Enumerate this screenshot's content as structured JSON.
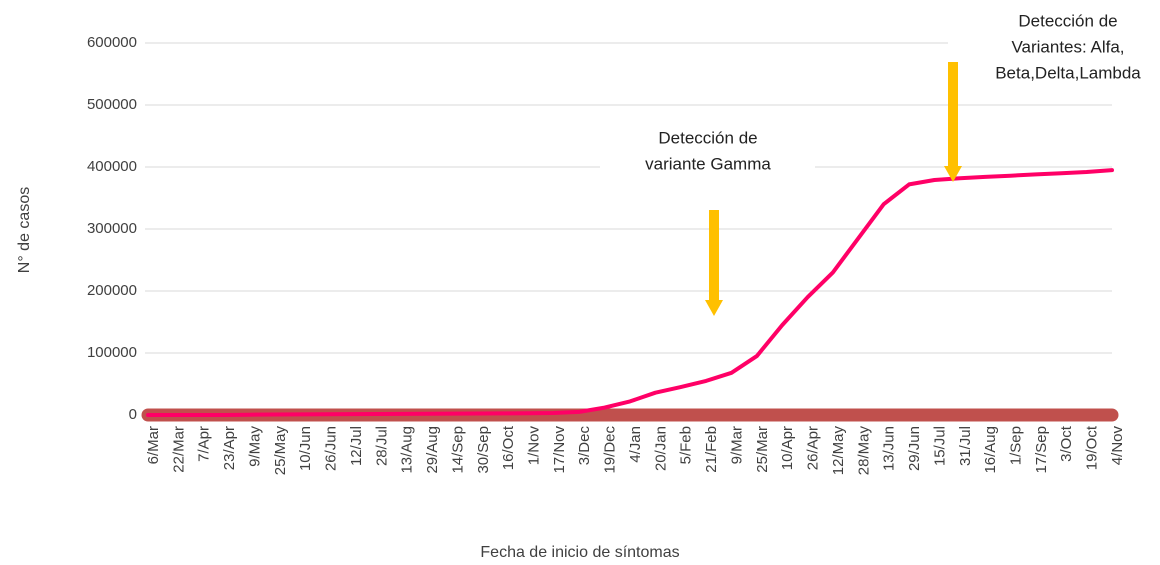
{
  "chart_data": {
    "type": "line",
    "ylabel": "N° de casos",
    "xlabel": "Fecha de inicio de síntomas",
    "categories": [
      "6/Mar",
      "22/Mar",
      "7/Apr",
      "23/Apr",
      "9/May",
      "25/May",
      "10/Jun",
      "26/Jun",
      "12/Jul",
      "28/Jul",
      "13/Aug",
      "29/Aug",
      "14/Sep",
      "30/Sep",
      "16/Oct",
      "1/Nov",
      "17/Nov",
      "3/Dec",
      "19/Dec",
      "4/Jan",
      "20/Jan",
      "5/Feb",
      "21/Feb",
      "9/Mar",
      "25/Mar",
      "10/Apr",
      "26/Apr",
      "12/May",
      "28/May",
      "13/Jun",
      "29/Jun",
      "15/Jul",
      "31/Jul",
      "16/Aug",
      "1/Sep",
      "17/Sep",
      "3/Oct",
      "19/Oct",
      "4/Nov"
    ],
    "series": [
      {
        "color": "#ff0066",
        "values": [
          0,
          0,
          0,
          0,
          500,
          800,
          1000,
          1200,
          1400,
          1600,
          1800,
          2000,
          2200,
          2400,
          2600,
          2900,
          3200,
          5000,
          12000,
          22000,
          36000,
          45000,
          55000,
          68000,
          95000,
          145000,
          190000,
          230000,
          285000,
          340000,
          372000,
          379000,
          382000,
          384000,
          386000,
          388000,
          390000,
          392000,
          395000
        ]
      },
      {
        "color": "#c0504d",
        "values": [
          0,
          0,
          0,
          0,
          0,
          0,
          0,
          0,
          0,
          0,
          0,
          0,
          0,
          0,
          0,
          0,
          0,
          0,
          0,
          0,
          0,
          0,
          0,
          0,
          0,
          0,
          0,
          0,
          0,
          0,
          0,
          0,
          0,
          0,
          0,
          0,
          0,
          0,
          0
        ]
      }
    ],
    "ylim": [
      0,
      600000
    ],
    "yticks": [
      0,
      100000,
      200000,
      300000,
      400000,
      500000,
      600000
    ],
    "grid": true,
    "annotations": [
      {
        "lines": [
          "Detección de",
          "variante Gamma"
        ],
        "color": "#ffc000"
      },
      {
        "lines": [
          "Detección de",
          "Variantes: Alfa,",
          "Beta,Delta,Lambda"
        ],
        "color": "#ffc000"
      }
    ]
  }
}
